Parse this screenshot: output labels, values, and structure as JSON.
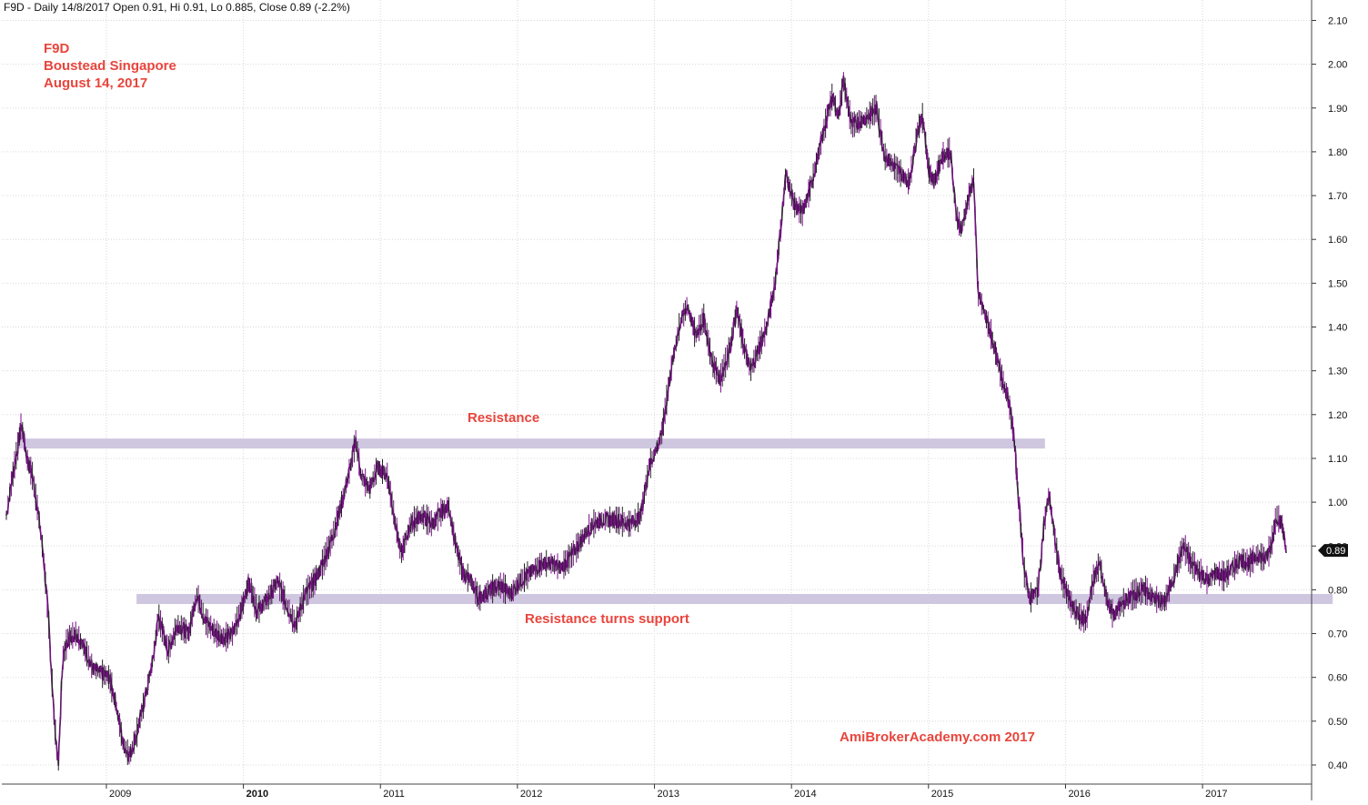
{
  "header": {
    "ohlc_text": "F9D - Daily 14/8/2017 Open 0.91, Hi 0.91, Lo 0.885, Close 0.89 (-2.2%)"
  },
  "annotations": {
    "ticker": "F9D",
    "company": "Boustead Singapore",
    "date": "August 14, 2017",
    "resistance_label": "Resistance",
    "support_label": "Resistance turns support",
    "watermark": "AmiBrokerAcademy.com   2017"
  },
  "colors": {
    "accent_text": "#e8453c",
    "zone_band": "#cfc6e0",
    "price_line": "#7a0e8a",
    "grid": "#d8d8d8"
  },
  "chart_data": {
    "type": "line",
    "title": "",
    "xlabel": "",
    "ylabel": "",
    "ylim": [
      0.38,
      2.14
    ],
    "grid": true,
    "y_axis_position": "right",
    "yticks": [
      "0.40",
      "0.50",
      "0.60",
      "0.70",
      "0.80",
      "0.90",
      "1.00",
      "1.10",
      "1.20",
      "1.30",
      "1.40",
      "1.50",
      "1.60",
      "1.70",
      "1.80",
      "1.90",
      "2.00",
      "2.10"
    ],
    "xticks": [
      {
        "label": "2009",
        "t": 2009.0,
        "bold": false
      },
      {
        "label": "2010",
        "t": 2010.0,
        "bold": true
      },
      {
        "label": "2011",
        "t": 2011.0,
        "bold": false
      },
      {
        "label": "2012",
        "t": 2012.0,
        "bold": false
      },
      {
        "label": "2013",
        "t": 2013.0,
        "bold": false
      },
      {
        "label": "2014",
        "t": 2014.0,
        "bold": false
      },
      {
        "label": "2015",
        "t": 2015.0,
        "bold": false
      },
      {
        "label": "2016",
        "t": 2016.0,
        "bold": false
      },
      {
        "label": "2017",
        "t": 2017.0,
        "bold": false
      }
    ],
    "last_close": 0.89,
    "last_close_label": "0.89",
    "zones": [
      {
        "name": "Resistance",
        "level": 1.135,
        "t_start": 2008.35,
        "t_end": 2015.85
      },
      {
        "name": "Resistance turns support",
        "level": 0.78,
        "t_start": 2009.22,
        "t_end": 2017.95
      }
    ],
    "series": [
      {
        "points": [
          [
            2008.27,
            0.97
          ],
          [
            2008.31,
            1.05
          ],
          [
            2008.35,
            1.12
          ],
          [
            2008.38,
            1.18
          ],
          [
            2008.42,
            1.1
          ],
          [
            2008.46,
            1.06
          ],
          [
            2008.5,
            0.98
          ],
          [
            2008.54,
            0.88
          ],
          [
            2008.58,
            0.72
          ],
          [
            2008.62,
            0.5
          ],
          [
            2008.65,
            0.4
          ],
          [
            2008.68,
            0.64
          ],
          [
            2008.72,
            0.69
          ],
          [
            2008.78,
            0.7
          ],
          [
            2008.85,
            0.66
          ],
          [
            2008.9,
            0.62
          ],
          [
            2008.96,
            0.61
          ],
          [
            2009.02,
            0.6
          ],
          [
            2009.07,
            0.54
          ],
          [
            2009.12,
            0.45
          ],
          [
            2009.17,
            0.42
          ],
          [
            2009.22,
            0.47
          ],
          [
            2009.28,
            0.55
          ],
          [
            2009.34,
            0.64
          ],
          [
            2009.38,
            0.74
          ],
          [
            2009.45,
            0.66
          ],
          [
            2009.52,
            0.72
          ],
          [
            2009.6,
            0.7
          ],
          [
            2009.66,
            0.79
          ],
          [
            2009.72,
            0.73
          ],
          [
            2009.8,
            0.7
          ],
          [
            2009.86,
            0.69
          ],
          [
            2009.92,
            0.7
          ],
          [
            2010.0,
            0.77
          ],
          [
            2010.04,
            0.82
          ],
          [
            2010.1,
            0.75
          ],
          [
            2010.18,
            0.78
          ],
          [
            2010.25,
            0.82
          ],
          [
            2010.32,
            0.76
          ],
          [
            2010.38,
            0.72
          ],
          [
            2010.45,
            0.79
          ],
          [
            2010.52,
            0.82
          ],
          [
            2010.58,
            0.86
          ],
          [
            2010.65,
            0.92
          ],
          [
            2010.72,
            1.0
          ],
          [
            2010.78,
            1.08
          ],
          [
            2010.82,
            1.14
          ],
          [
            2010.86,
            1.06
          ],
          [
            2010.92,
            1.03
          ],
          [
            2010.98,
            1.08
          ],
          [
            2011.05,
            1.06
          ],
          [
            2011.1,
            0.97
          ],
          [
            2011.15,
            0.88
          ],
          [
            2011.22,
            0.95
          ],
          [
            2011.3,
            0.97
          ],
          [
            2011.38,
            0.95
          ],
          [
            2011.45,
            0.98
          ],
          [
            2011.5,
            0.99
          ],
          [
            2011.55,
            0.9
          ],
          [
            2011.6,
            0.84
          ],
          [
            2011.66,
            0.82
          ],
          [
            2011.72,
            0.78
          ],
          [
            2011.8,
            0.8
          ],
          [
            2011.88,
            0.81
          ],
          [
            2011.95,
            0.79
          ],
          [
            2012.02,
            0.82
          ],
          [
            2012.1,
            0.84
          ],
          [
            2012.18,
            0.86
          ],
          [
            2012.25,
            0.86
          ],
          [
            2012.32,
            0.85
          ],
          [
            2012.4,
            0.88
          ],
          [
            2012.48,
            0.92
          ],
          [
            2012.55,
            0.95
          ],
          [
            2012.62,
            0.96
          ],
          [
            2012.72,
            0.96
          ],
          [
            2012.82,
            0.95
          ],
          [
            2012.9,
            0.97
          ],
          [
            2012.96,
            1.08
          ],
          [
            2013.05,
            1.15
          ],
          [
            2013.12,
            1.3
          ],
          [
            2013.18,
            1.4
          ],
          [
            2013.24,
            1.45
          ],
          [
            2013.3,
            1.38
          ],
          [
            2013.36,
            1.42
          ],
          [
            2013.42,
            1.32
          ],
          [
            2013.48,
            1.28
          ],
          [
            2013.55,
            1.35
          ],
          [
            2013.6,
            1.44
          ],
          [
            2013.65,
            1.36
          ],
          [
            2013.7,
            1.3
          ],
          [
            2013.76,
            1.35
          ],
          [
            2013.82,
            1.4
          ],
          [
            2013.88,
            1.5
          ],
          [
            2013.92,
            1.62
          ],
          [
            2013.96,
            1.75
          ],
          [
            2014.02,
            1.68
          ],
          [
            2014.08,
            1.66
          ],
          [
            2014.14,
            1.72
          ],
          [
            2014.2,
            1.8
          ],
          [
            2014.26,
            1.88
          ],
          [
            2014.3,
            1.93
          ],
          [
            2014.34,
            1.88
          ],
          [
            2014.38,
            1.96
          ],
          [
            2014.44,
            1.86
          ],
          [
            2014.5,
            1.87
          ],
          [
            2014.56,
            1.88
          ],
          [
            2014.62,
            1.9
          ],
          [
            2014.68,
            1.79
          ],
          [
            2014.74,
            1.77
          ],
          [
            2014.8,
            1.75
          ],
          [
            2014.86,
            1.73
          ],
          [
            2014.92,
            1.85
          ],
          [
            2014.96,
            1.88
          ],
          [
            2015.0,
            1.76
          ],
          [
            2015.04,
            1.73
          ],
          [
            2015.1,
            1.79
          ],
          [
            2015.16,
            1.8
          ],
          [
            2015.2,
            1.66
          ],
          [
            2015.24,
            1.62
          ],
          [
            2015.28,
            1.68
          ],
          [
            2015.33,
            1.74
          ],
          [
            2015.36,
            1.48
          ],
          [
            2015.4,
            1.44
          ],
          [
            2015.46,
            1.38
          ],
          [
            2015.52,
            1.3
          ],
          [
            2015.58,
            1.24
          ],
          [
            2015.62,
            1.16
          ],
          [
            2015.66,
            1.0
          ],
          [
            2015.7,
            0.84
          ],
          [
            2015.74,
            0.78
          ],
          [
            2015.8,
            0.8
          ],
          [
            2015.84,
            0.94
          ],
          [
            2015.88,
            1.02
          ],
          [
            2015.92,
            0.92
          ],
          [
            2015.96,
            0.84
          ],
          [
            2016.0,
            0.8
          ],
          [
            2016.05,
            0.76
          ],
          [
            2016.1,
            0.74
          ],
          [
            2016.15,
            0.73
          ],
          [
            2016.2,
            0.82
          ],
          [
            2016.25,
            0.86
          ],
          [
            2016.3,
            0.78
          ],
          [
            2016.35,
            0.74
          ],
          [
            2016.42,
            0.77
          ],
          [
            2016.5,
            0.79
          ],
          [
            2016.58,
            0.8
          ],
          [
            2016.65,
            0.78
          ],
          [
            2016.72,
            0.77
          ],
          [
            2016.78,
            0.82
          ],
          [
            2016.82,
            0.86
          ],
          [
            2016.86,
            0.9
          ],
          [
            2016.92,
            0.86
          ],
          [
            2016.98,
            0.84
          ],
          [
            2017.04,
            0.82
          ],
          [
            2017.1,
            0.84
          ],
          [
            2017.16,
            0.83
          ],
          [
            2017.22,
            0.85
          ],
          [
            2017.28,
            0.87
          ],
          [
            2017.34,
            0.86
          ],
          [
            2017.4,
            0.88
          ],
          [
            2017.46,
            0.87
          ],
          [
            2017.5,
            0.9
          ],
          [
            2017.54,
            0.97
          ],
          [
            2017.58,
            0.95
          ],
          [
            2017.61,
            0.89
          ]
        ]
      }
    ]
  }
}
